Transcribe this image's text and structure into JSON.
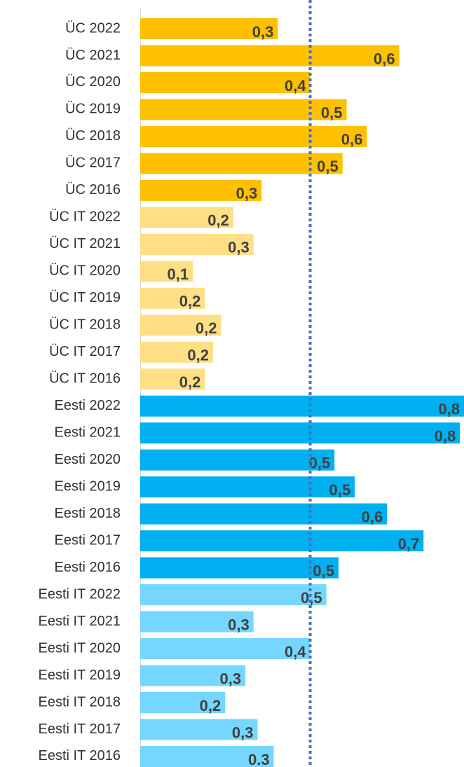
{
  "chart_data": {
    "type": "bar",
    "orientation": "horizontal",
    "categories": [
      "ÜC 2022",
      "ÜC 2021",
      "ÜC 2020",
      "ÜC 2019",
      "ÜC 2018",
      "ÜC 2017",
      "ÜC 2016",
      "ÜC IT 2022",
      "ÜC IT 2021",
      "ÜC IT 2020",
      "ÜC IT 2019",
      "ÜC IT 2018",
      "ÜC IT 2017",
      "ÜC IT 2016",
      "Eesti 2022",
      "Eesti 2021",
      "Eesti 2020",
      "Eesti 2019",
      "Eesti 2018",
      "Eesti 2017",
      "Eesti 2016",
      "Eesti IT 2022",
      "Eesti IT 2021",
      "Eesti IT 2020",
      "Eesti IT 2019",
      "Eesti IT 2018",
      "Eesti IT 2017",
      "Eesti IT 2016"
    ],
    "values": [
      0.34,
      0.64,
      0.42,
      0.51,
      0.56,
      0.5,
      0.3,
      0.23,
      0.28,
      0.13,
      0.16,
      0.2,
      0.18,
      0.16,
      0.8,
      0.79,
      0.48,
      0.53,
      0.61,
      0.7,
      0.49,
      0.46,
      0.28,
      0.42,
      0.26,
      0.21,
      0.29,
      0.33
    ],
    "value_labels": [
      "0,3",
      "0,6",
      "0,4",
      "0,5",
      "0,6",
      "0,5",
      "0,3",
      "0,2",
      "0,3",
      "0,1",
      "0,2",
      "0,2",
      "0,2",
      "0,2",
      "0,8",
      "0,8",
      "0,5",
      "0,5",
      "0,6",
      "0,7",
      "0,5",
      "0,5",
      "0,3",
      "0,4",
      "0,3",
      "0,2",
      "0,3",
      "0.3"
    ],
    "colors": [
      "#ffc000",
      "#ffc000",
      "#ffc000",
      "#ffc000",
      "#ffc000",
      "#ffc000",
      "#ffc000",
      "#fedf86",
      "#fedf86",
      "#fedf86",
      "#fedf86",
      "#fedf86",
      "#fedf86",
      "#fedf86",
      "#00b0f0",
      "#00b0f0",
      "#00b0f0",
      "#00b0f0",
      "#00b0f0",
      "#00b0f0",
      "#00b0f0",
      "#75d7ff",
      "#75d7ff",
      "#75d7ff",
      "#75d7ff",
      "#75d7ff",
      "#75d7ff",
      "#75d7ff"
    ],
    "xlim": [
      0,
      0.8
    ],
    "reference_line": 0.42,
    "reference_color": "#4472c4"
  }
}
